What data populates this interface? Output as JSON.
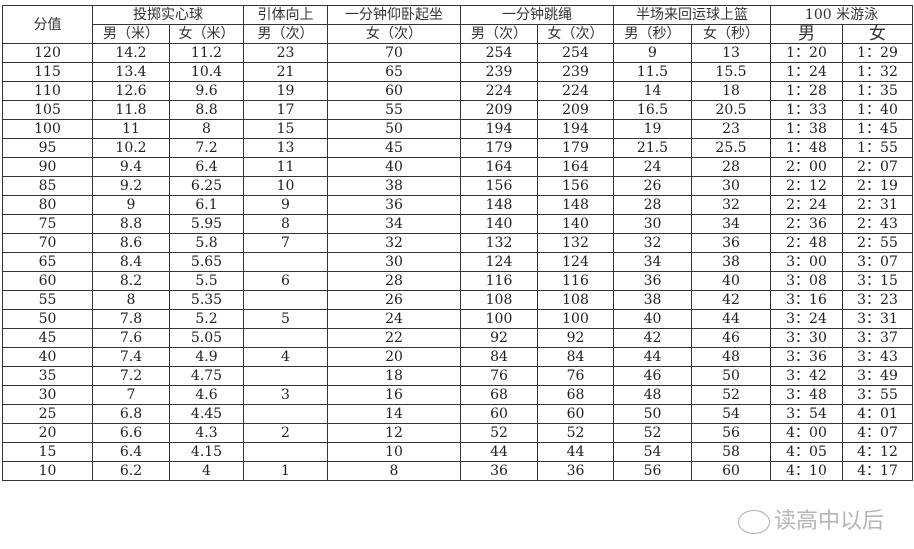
{
  "headers": {
    "score": "分值",
    "shot_put": "投掷实心球",
    "pull_up": "引体向上",
    "sit_up": "一分钟仰卧起坐",
    "rope": "一分钟跳绳",
    "basketball": "半场来回运球上篮",
    "swim": "100 米游泳",
    "shot_m": "男（米）",
    "shot_f": "女（米）",
    "pull_m": "男（次）",
    "sit_f": "女（次）",
    "rope_m": "男（次）",
    "rope_f": "女（次）",
    "bb_m": "男（秒）",
    "bb_f": "女（秒）",
    "swim_m": "男",
    "swim_f": "女"
  },
  "rows": [
    [
      "120",
      "14.2",
      "11.2",
      "23",
      "70",
      "254",
      "254",
      "9",
      "13",
      "1：20",
      "1：29"
    ],
    [
      "115",
      "13.4",
      "10.4",
      "21",
      "65",
      "239",
      "239",
      "11.5",
      "15.5",
      "1：24",
      "1：32"
    ],
    [
      "110",
      "12.6",
      "9.6",
      "19",
      "60",
      "224",
      "224",
      "14",
      "18",
      "1：28",
      "1：35"
    ],
    [
      "105",
      "11.8",
      "8.8",
      "17",
      "55",
      "209",
      "209",
      "16.5",
      "20.5",
      "1：33",
      "1：40"
    ],
    [
      "100",
      "11",
      "8",
      "15",
      "50",
      "194",
      "194",
      "19",
      "23",
      "1：38",
      "1：45"
    ],
    [
      "95",
      "10.2",
      "7.2",
      "13",
      "45",
      "179",
      "179",
      "21.5",
      "25.5",
      "1：48",
      "1：55"
    ],
    [
      "90",
      "9.4",
      "6.4",
      "11",
      "40",
      "164",
      "164",
      "24",
      "28",
      "2：00",
      "2：07"
    ],
    [
      "85",
      "9.2",
      "6.25",
      "10",
      "38",
      "156",
      "156",
      "26",
      "30",
      "2：12",
      "2：19"
    ],
    [
      "80",
      "9",
      "6.1",
      "9",
      "36",
      "148",
      "148",
      "28",
      "32",
      "2：24",
      "2：31"
    ],
    [
      "75",
      "8.8",
      "5.95",
      "8",
      "34",
      "140",
      "140",
      "30",
      "34",
      "2：36",
      "2：43"
    ],
    [
      "70",
      "8.6",
      "5.8",
      "7",
      "32",
      "132",
      "132",
      "32",
      "36",
      "2：48",
      "2：55"
    ],
    [
      "65",
      "8.4",
      "5.65",
      "",
      "30",
      "124",
      "124",
      "34",
      "38",
      "3：00",
      "3：07"
    ],
    [
      "60",
      "8.2",
      "5.5",
      "6",
      "28",
      "116",
      "116",
      "36",
      "40",
      "3：08",
      "3：15"
    ],
    [
      "55",
      "8",
      "5.35",
      "",
      "26",
      "108",
      "108",
      "38",
      "42",
      "3：16",
      "3：23"
    ],
    [
      "50",
      "7.8",
      "5.2",
      "5",
      "24",
      "100",
      "100",
      "40",
      "44",
      "3：24",
      "3：31"
    ],
    [
      "45",
      "7.6",
      "5.05",
      "",
      "22",
      "92",
      "92",
      "42",
      "46",
      "3：30",
      "3：37"
    ],
    [
      "40",
      "7.4",
      "4.9",
      "4",
      "20",
      "84",
      "84",
      "44",
      "48",
      "3：36",
      "3：43"
    ],
    [
      "35",
      "7.2",
      "4.75",
      "",
      "18",
      "76",
      "76",
      "46",
      "50",
      "3：42",
      "3：49"
    ],
    [
      "30",
      "7",
      "4.6",
      "3",
      "16",
      "68",
      "68",
      "48",
      "52",
      "3：48",
      "3：55"
    ],
    [
      "25",
      "6.8",
      "4.45",
      "",
      "14",
      "60",
      "60",
      "50",
      "54",
      "3：54",
      "4：01"
    ],
    [
      "20",
      "6.6",
      "4.3",
      "2",
      "12",
      "52",
      "52",
      "52",
      "56",
      "4：00",
      "4：07"
    ],
    [
      "15",
      "6.4",
      "4.15",
      "",
      "10",
      "44",
      "44",
      "54",
      "58",
      "4：05",
      "4：12"
    ],
    [
      "10",
      "6.2",
      "4",
      "1",
      "8",
      "36",
      "36",
      "56",
      "60",
      "4：10",
      "4：17"
    ]
  ],
  "watermark": "读高中以后"
}
